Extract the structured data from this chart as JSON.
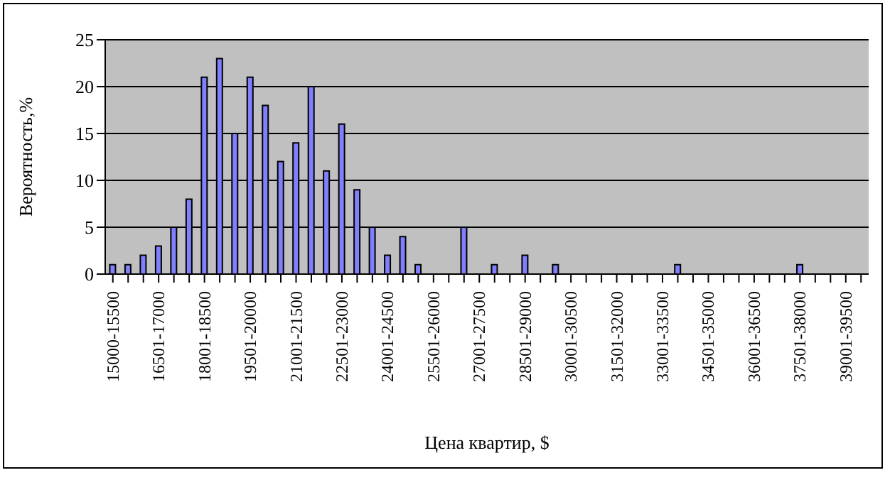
{
  "chart_data": {
    "type": "bar",
    "xlabel": "Цена квартир, $",
    "ylabel": "Вероятность,%",
    "categories": [
      "15000-15500",
      null,
      null,
      "16501-17000",
      null,
      null,
      "18001-18500",
      null,
      null,
      "19501-20000",
      null,
      null,
      "21001-21500",
      null,
      null,
      "22501-23000",
      null,
      null,
      "24001-24500",
      null,
      null,
      "25501-26000",
      null,
      null,
      "27001-27500",
      null,
      null,
      "28501-29000",
      null,
      null,
      "30001-30500",
      null,
      null,
      "31501-32000",
      null,
      null,
      "33001-33500",
      null,
      null,
      "34501-35000",
      null,
      null,
      "36001-36500",
      null,
      null,
      "37501-38000",
      null,
      null,
      "39001-39500",
      null
    ],
    "values": [
      1,
      1,
      2,
      3,
      5,
      8,
      21,
      23,
      15,
      21,
      18,
      12,
      14,
      20,
      11,
      16,
      9,
      5,
      2,
      4,
      1,
      0,
      0,
      5,
      0,
      1,
      0,
      2,
      0,
      1,
      0,
      0,
      0,
      0,
      0,
      0,
      0,
      1,
      0,
      0,
      0,
      0,
      0,
      0,
      0,
      1,
      0,
      0,
      0,
      0
    ],
    "color": "#8080ff",
    "ylim": [
      0,
      25
    ],
    "yticks": [
      0,
      5,
      10,
      15,
      20,
      25
    ],
    "grid": "y"
  }
}
